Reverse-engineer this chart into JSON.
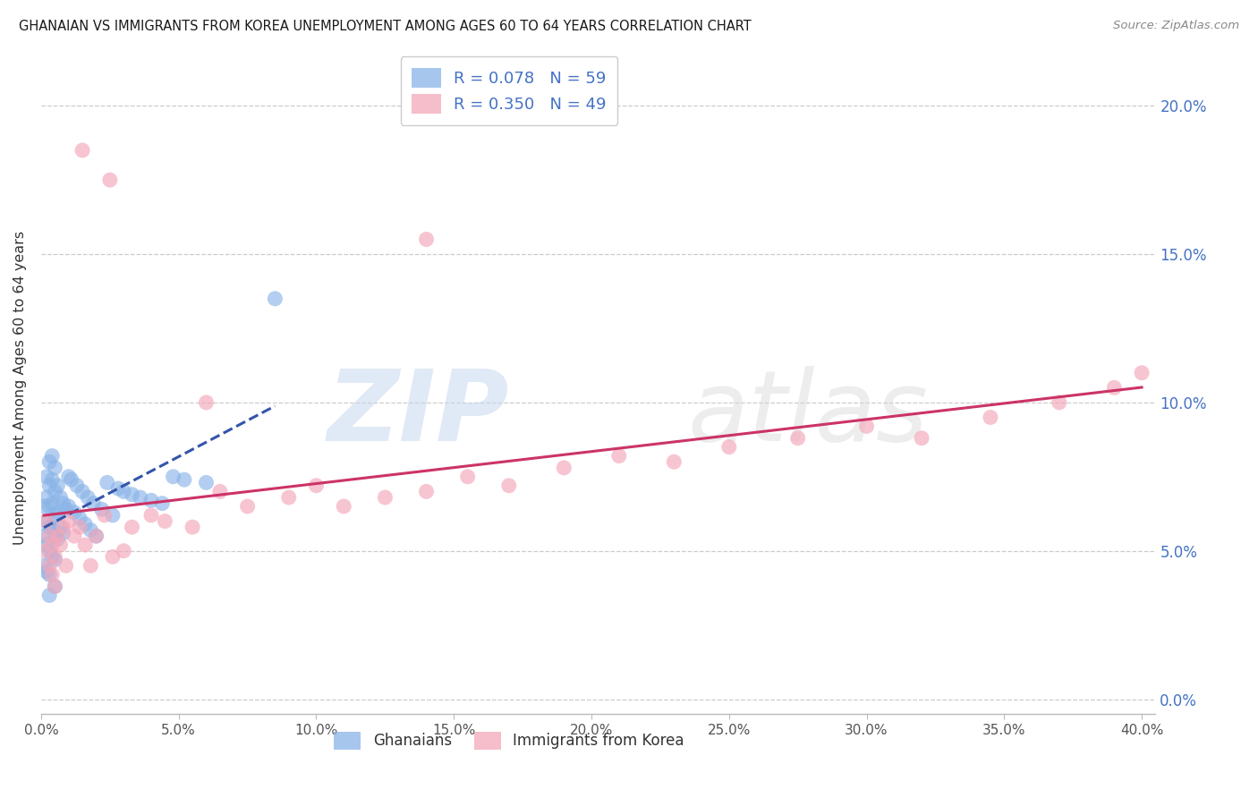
{
  "title": "GHANAIAN VS IMMIGRANTS FROM KOREA UNEMPLOYMENT AMONG AGES 60 TO 64 YEARS CORRELATION CHART",
  "source": "Source: ZipAtlas.com",
  "ylabel": "Unemployment Among Ages 60 to 64 years",
  "blue_color": "#8ab4e8",
  "pink_color": "#f4a7b9",
  "blue_line_color": "#3355aa",
  "pink_line_color": "#cc3366",
  "blue_label": "R = 0.078   N = 59",
  "pink_label": "R = 0.350   N = 49",
  "ghanaians_label": "Ghanaians",
  "korea_label": "Immigrants from Korea",
  "blue_x": [
    0.001,
    0.001,
    0.001,
    0.002,
    0.002,
    0.002,
    0.002,
    0.002,
    0.003,
    0.003,
    0.003,
    0.003,
    0.003,
    0.003,
    0.003,
    0.004,
    0.004,
    0.004,
    0.004,
    0.004,
    0.005,
    0.005,
    0.005,
    0.005,
    0.005,
    0.005,
    0.006,
    0.006,
    0.006,
    0.007,
    0.007,
    0.008,
    0.008,
    0.009,
    0.01,
    0.01,
    0.011,
    0.012,
    0.013,
    0.014,
    0.015,
    0.016,
    0.017,
    0.018,
    0.019,
    0.02,
    0.022,
    0.024,
    0.026,
    0.028,
    0.03,
    0.033,
    0.036,
    0.04,
    0.044,
    0.048,
    0.052,
    0.06,
    0.085
  ],
  "blue_y": [
    0.065,
    0.055,
    0.045,
    0.075,
    0.068,
    0.06,
    0.052,
    0.043,
    0.08,
    0.072,
    0.065,
    0.058,
    0.05,
    0.042,
    0.035,
    0.082,
    0.074,
    0.066,
    0.058,
    0.048,
    0.078,
    0.07,
    0.062,
    0.055,
    0.047,
    0.038,
    0.072,
    0.063,
    0.054,
    0.068,
    0.058,
    0.066,
    0.056,
    0.064,
    0.075,
    0.065,
    0.074,
    0.063,
    0.072,
    0.061,
    0.07,
    0.059,
    0.068,
    0.057,
    0.066,
    0.055,
    0.064,
    0.073,
    0.062,
    0.071,
    0.07,
    0.069,
    0.068,
    0.067,
    0.066,
    0.075,
    0.074,
    0.073,
    0.135
  ],
  "pink_x": [
    0.001,
    0.002,
    0.003,
    0.003,
    0.004,
    0.004,
    0.005,
    0.005,
    0.006,
    0.007,
    0.008,
    0.009,
    0.01,
    0.012,
    0.014,
    0.016,
    0.018,
    0.02,
    0.023,
    0.026,
    0.03,
    0.033,
    0.04,
    0.045,
    0.055,
    0.065,
    0.075,
    0.09,
    0.1,
    0.11,
    0.125,
    0.14,
    0.155,
    0.17,
    0.19,
    0.21,
    0.23,
    0.25,
    0.275,
    0.3,
    0.32,
    0.345,
    0.37,
    0.39,
    0.4,
    0.14,
    0.06,
    0.025,
    0.015
  ],
  "pink_y": [
    0.05,
    0.06,
    0.045,
    0.055,
    0.052,
    0.042,
    0.048,
    0.038,
    0.055,
    0.052,
    0.058,
    0.045,
    0.06,
    0.055,
    0.058,
    0.052,
    0.045,
    0.055,
    0.062,
    0.048,
    0.05,
    0.058,
    0.062,
    0.06,
    0.058,
    0.07,
    0.065,
    0.068,
    0.072,
    0.065,
    0.068,
    0.07,
    0.075,
    0.072,
    0.078,
    0.082,
    0.08,
    0.085,
    0.088,
    0.092,
    0.088,
    0.095,
    0.1,
    0.105,
    0.11,
    0.155,
    0.1,
    0.175,
    0.185
  ],
  "xlim": [
    0.0,
    0.405
  ],
  "ylim": [
    -0.005,
    0.215
  ],
  "x_ticks": [
    0.0,
    0.05,
    0.1,
    0.15,
    0.2,
    0.25,
    0.3,
    0.35,
    0.4
  ],
  "y_ticks": [
    0.0,
    0.05,
    0.1,
    0.15,
    0.2
  ]
}
